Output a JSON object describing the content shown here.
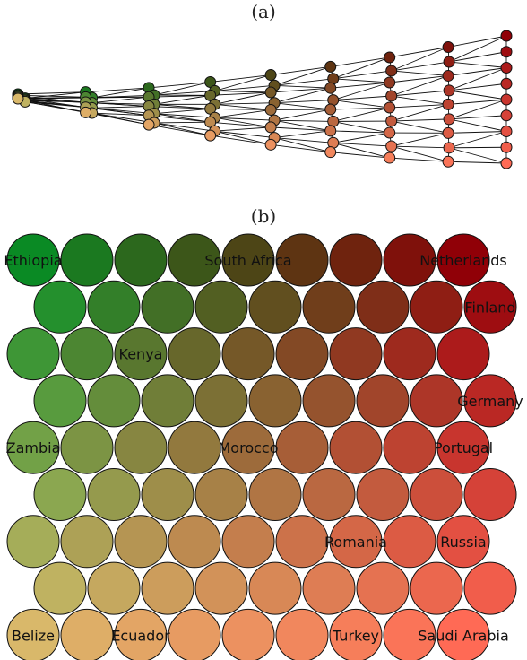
{
  "panels": {
    "a": {
      "label": "(a)"
    },
    "b": {
      "label": "(b)"
    }
  },
  "grid": {
    "rows": 9,
    "cols": 9,
    "corner_colors": {
      "top_left": "#0a8a24",
      "top_right": "#900007",
      "bottom_left": "#d9b86a",
      "bottom_right": "#ff6a55"
    }
  },
  "country_labels": [
    {
      "text": "Ethiopia",
      "row": 0,
      "col": 0
    },
    {
      "text": "South Africa",
      "row": 0,
      "col": 4
    },
    {
      "text": "Netherlands",
      "row": 0,
      "col": 8
    },
    {
      "text": "Finland",
      "row": 1,
      "col": 8
    },
    {
      "text": "Kenya",
      "row": 2,
      "col": 2
    },
    {
      "text": "Germany",
      "row": 3,
      "col": 8
    },
    {
      "text": "Zambia",
      "row": 4,
      "col": 0
    },
    {
      "text": "Morocco",
      "row": 4,
      "col": 4
    },
    {
      "text": "Portugal",
      "row": 4,
      "col": 8
    },
    {
      "text": "Romania",
      "row": 6,
      "col": 6
    },
    {
      "text": "Russia",
      "row": 6,
      "col": 8
    },
    {
      "text": "Belize",
      "row": 8,
      "col": 0
    },
    {
      "text": "Ecuador",
      "row": 8,
      "col": 2
    },
    {
      "text": "Turkey",
      "row": 8,
      "col": 6
    },
    {
      "text": "Saudi Arabia",
      "row": 8,
      "col": 8
    }
  ]
}
